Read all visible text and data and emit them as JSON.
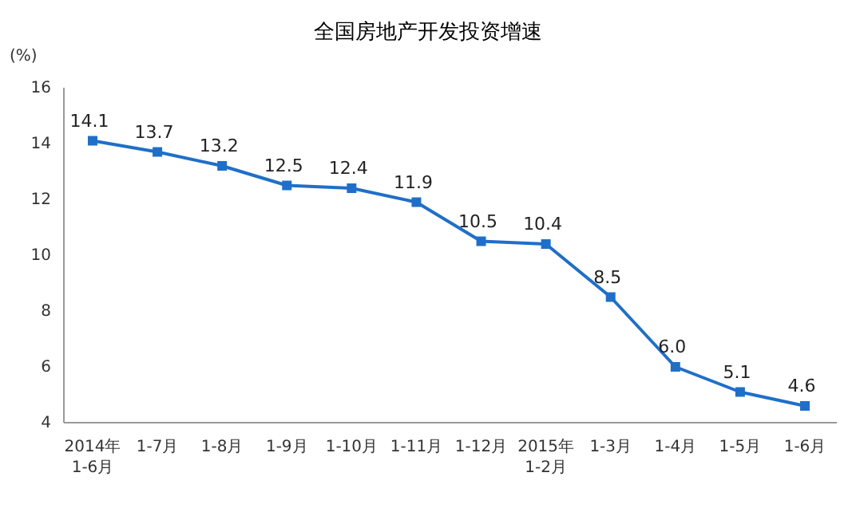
{
  "chart_data": {
    "type": "line",
    "title": "全国房地产开发投资增速",
    "ylabel": "(%)",
    "categories": [
      "2014年\n1-6月",
      "1-7月",
      "1-8月",
      "1-9月",
      "1-10月",
      "1-11月",
      "1-12月",
      "2015年\n1-2月",
      "1-3月",
      "1-4月",
      "1-5月",
      "1-6月"
    ],
    "series": [
      {
        "color": "#1f6fc8",
        "values": [
          14.1,
          13.7,
          13.2,
          12.5,
          12.4,
          11.9,
          10.5,
          10.4,
          8.5,
          6.0,
          5.1,
          4.6
        ]
      }
    ],
    "value_labels": [
      "14.1",
      "13.7",
      "13.2",
      "12.5",
      "12.4",
      "11.9",
      "10.5",
      "10.4",
      "8.5",
      "6.0",
      "5.1",
      "4.6"
    ],
    "ylim": [
      4,
      16
    ],
    "yticks": [
      4,
      6,
      8,
      10,
      12,
      14,
      16
    ],
    "marker": "square",
    "line_style": "solid"
  }
}
